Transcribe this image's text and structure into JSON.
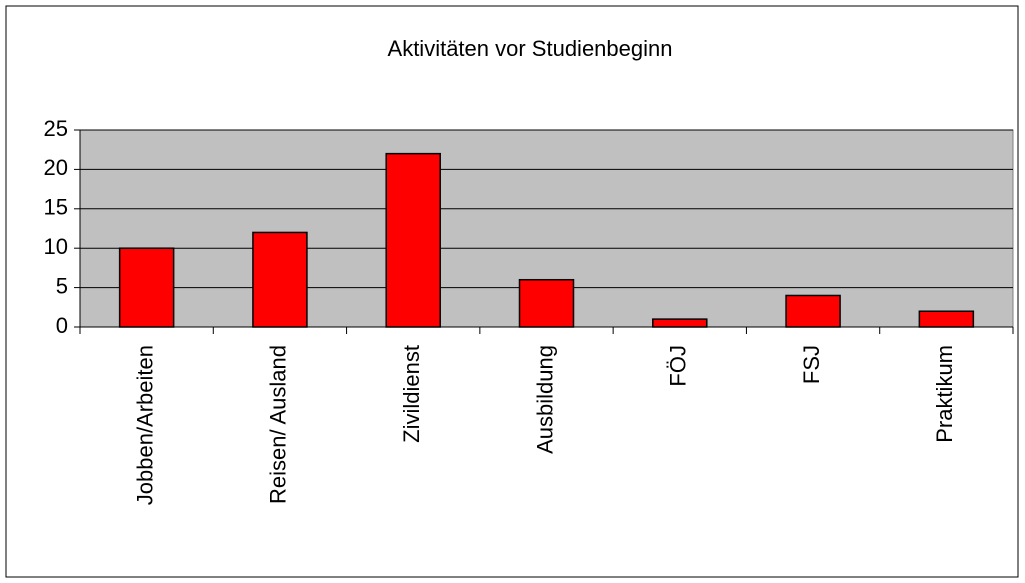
{
  "chart_data": {
    "type": "bar",
    "title": "Aktivitäten vor Studienbeginn",
    "categories": [
      "Jobben/Arbeiten",
      "Reisen/ Ausland",
      "Zivildienst",
      "Ausbildung",
      "FÖJ",
      "FSJ",
      "Praktikum"
    ],
    "values": [
      10,
      12,
      22,
      6,
      1,
      4,
      2
    ],
    "color": "#ff0000",
    "ylim": [
      0,
      25
    ],
    "yticks": [
      0,
      5,
      10,
      15,
      20,
      25
    ],
    "grid": true
  }
}
